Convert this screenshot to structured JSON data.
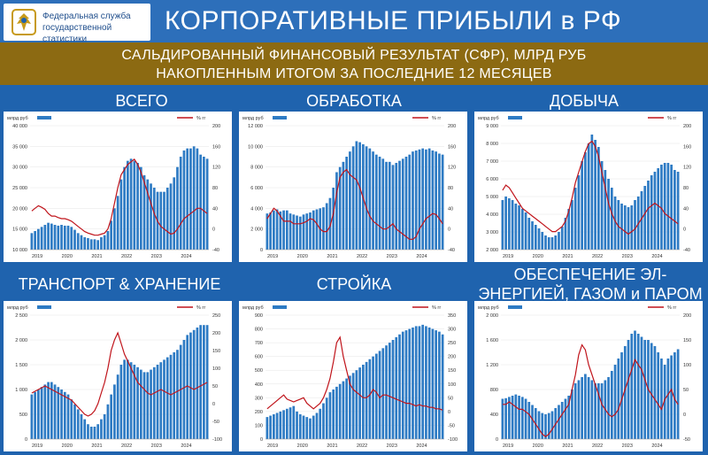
{
  "header": {
    "org_line1": "Федеральная служба",
    "org_line2": "государственной статистики",
    "title": "КОРПОРАТИВНЫЕ ПРИБЫЛИ в РФ"
  },
  "subtitle": {
    "line1": "САЛЬДИРОВАННЫЙ ФИНАНСОВЫЙ РЕЗУЛЬТАТ (СФР), МЛРД РУБ",
    "line2": "НАКОПЛЕННЫМ ИТОГОМ ЗА ПОСЛЕДНИЕ 12 МЕСЯЦЕВ"
  },
  "colors": {
    "bar": "#2e7bc4",
    "line": "#c0141b",
    "background": "#1f63ae",
    "band": "#8c6a12"
  },
  "legend": {
    "left": "млрд руб",
    "right": "% гг"
  },
  "panels": [
    {
      "title": "ВСЕГО"
    },
    {
      "title": "ОБРАБОТКА"
    },
    {
      "title": "ДОБЫЧА"
    },
    {
      "title": "ТРАНСПОРТ & ХРАНЕНИЕ"
    },
    {
      "title": "СТРОЙКА"
    },
    {
      "title": "ОБЕСПЕЧЕНИЕ ЭЛ-ЭНЕРГИЕЙ, ГАЗОМ и ПАРОМ"
    }
  ],
  "chart_data": [
    {
      "type": "bar",
      "title": "ВСЕГО",
      "x_labels": [
        "2019",
        "2020",
        "2021",
        "2022",
        "2023",
        "2024"
      ],
      "ylim": [
        10000,
        40000
      ],
      "y_ticks": [
        10000,
        15000,
        20000,
        25000,
        30000,
        35000,
        40000
      ],
      "y_tick_labels": [
        "10 000",
        "15 000",
        "20 000",
        "25 000",
        "30 000",
        "35 000",
        "40 000"
      ],
      "y2lim": [
        -40,
        200
      ],
      "y2_ticks": [
        -40,
        0,
        40,
        80,
        120,
        160,
        200
      ],
      "series": [
        {
          "name": "млрд руб",
          "values": [
            14000,
            14500,
            15000,
            15500,
            16000,
            16500,
            16300,
            16000,
            15800,
            16000,
            15800,
            15800,
            15500,
            14800,
            14000,
            13500,
            13000,
            12800,
            12500,
            12500,
            12300,
            13000,
            13500,
            14500,
            17000,
            20000,
            23000,
            27000,
            30000,
            31500,
            32000,
            31500,
            31000,
            30000,
            28000,
            27000,
            26000,
            25000,
            24000,
            24000,
            24000,
            25000,
            26000,
            27500,
            30000,
            32500,
            34000,
            34500,
            34500,
            35000,
            34500,
            33000,
            32500,
            32000
          ]
        },
        {
          "name": "% гг",
          "values": [
            35,
            40,
            45,
            42,
            38,
            30,
            25,
            25,
            22,
            20,
            20,
            18,
            15,
            10,
            5,
            0,
            -5,
            -8,
            -10,
            -12,
            -12,
            -10,
            -8,
            0,
            20,
            50,
            80,
            105,
            115,
            125,
            130,
            135,
            125,
            110,
            90,
            70,
            50,
            30,
            15,
            5,
            0,
            -5,
            -10,
            -8,
            0,
            10,
            20,
            25,
            30,
            35,
            40,
            40,
            35,
            30
          ]
        }
      ]
    },
    {
      "type": "bar",
      "title": "ОБРАБОТКА",
      "x_labels": [
        "2019",
        "2020",
        "2021",
        "2022",
        "2023",
        "2024"
      ],
      "ylim": [
        0,
        12000
      ],
      "y_ticks": [
        0,
        2000,
        4000,
        6000,
        8000,
        10000,
        12000
      ],
      "y_tick_labels": [
        "0",
        "2 000",
        "4 000",
        "6 000",
        "8 000",
        "10 000",
        "12 000"
      ],
      "y2lim": [
        -40,
        200
      ],
      "y2_ticks": [
        -40,
        0,
        40,
        80,
        120,
        160,
        200
      ],
      "series": [
        {
          "name": "млрд руб",
          "values": [
            3500,
            3600,
            3800,
            3900,
            3700,
            3800,
            3800,
            3500,
            3400,
            3300,
            3200,
            3400,
            3500,
            3600,
            3800,
            3900,
            4000,
            4100,
            4500,
            5000,
            6000,
            7500,
            8000,
            8500,
            9000,
            9500,
            10000,
            10500,
            10400,
            10200,
            10000,
            9800,
            9500,
            9200,
            9000,
            8800,
            8500,
            8500,
            8200,
            8400,
            8600,
            8800,
            9000,
            9200,
            9500,
            9600,
            9700,
            9800,
            9700,
            9800,
            9600,
            9500,
            9300,
            9200
          ]
        },
        {
          "name": "% гг",
          "values": [
            20,
            30,
            40,
            35,
            25,
            15,
            15,
            15,
            10,
            10,
            10,
            12,
            15,
            20,
            18,
            10,
            0,
            -5,
            -5,
            5,
            30,
            70,
            100,
            110,
            115,
            105,
            100,
            95,
            80,
            60,
            40,
            25,
            15,
            10,
            5,
            0,
            0,
            5,
            10,
            0,
            -5,
            -10,
            -15,
            -20,
            -20,
            -15,
            0,
            10,
            20,
            25,
            30,
            28,
            20,
            10
          ]
        }
      ]
    },
    {
      "type": "bar",
      "title": "ДОБЫЧА",
      "x_labels": [
        "2019",
        "2020",
        "2021",
        "2022",
        "2023",
        "2024"
      ],
      "ylim": [
        2000,
        9000
      ],
      "y_ticks": [
        2000,
        3000,
        4000,
        5000,
        6000,
        7000,
        8000,
        9000
      ],
      "y_tick_labels": [
        "2 000",
        "3 000",
        "4 000",
        "5 000",
        "6 000",
        "7 000",
        "8 000",
        "9 000"
      ],
      "y2lim": [
        -40,
        200
      ],
      "y2_ticks": [
        -40,
        0,
        40,
        80,
        120,
        160,
        200
      ],
      "series": [
        {
          "name": "млрд руб",
          "values": [
            4800,
            5000,
            4900,
            4800,
            4600,
            4500,
            4300,
            4100,
            3800,
            3600,
            3400,
            3200,
            3000,
            2800,
            2700,
            2700,
            2800,
            3000,
            3300,
            3800,
            4300,
            4800,
            5500,
            6200,
            7000,
            7500,
            8000,
            8500,
            8200,
            7800,
            7000,
            6500,
            6000,
            5500,
            5000,
            4800,
            4600,
            4500,
            4400,
            4500,
            4800,
            5000,
            5300,
            5600,
            5900,
            6200,
            6400,
            6600,
            6800,
            6900,
            6900,
            6800,
            6500,
            6400
          ]
        },
        {
          "name": "% гг",
          "values": [
            75,
            85,
            80,
            70,
            60,
            50,
            40,
            35,
            30,
            25,
            20,
            15,
            10,
            5,
            0,
            -5,
            -5,
            0,
            5,
            15,
            35,
            60,
            90,
            110,
            130,
            150,
            165,
            170,
            160,
            140,
            110,
            80,
            50,
            30,
            15,
            5,
            0,
            -5,
            -10,
            -5,
            0,
            10,
            20,
            30,
            40,
            45,
            50,
            45,
            40,
            30,
            25,
            20,
            15,
            10
          ]
        }
      ]
    },
    {
      "type": "bar",
      "title": "ТРАНСПОРТ & ХРАНЕНИЕ",
      "x_labels": [
        "2019",
        "2020",
        "2021",
        "2022",
        "2023",
        "2024"
      ],
      "ylim": [
        0,
        2500
      ],
      "y_ticks": [
        0,
        500,
        1000,
        1500,
        2000,
        2500
      ],
      "y_tick_labels": [
        "0",
        "500",
        "1 000",
        "1 500",
        "2 000",
        "2 500"
      ],
      "y2lim": [
        -100,
        250
      ],
      "y2_ticks": [
        -100,
        -50,
        0,
        50,
        100,
        150,
        200,
        250
      ],
      "series": [
        {
          "name": "млрд руб",
          "values": [
            900,
            950,
            1000,
            1050,
            1100,
            1150,
            1150,
            1100,
            1050,
            1000,
            950,
            900,
            800,
            700,
            600,
            500,
            400,
            300,
            250,
            250,
            300,
            400,
            500,
            700,
            900,
            1100,
            1300,
            1500,
            1600,
            1600,
            1550,
            1500,
            1450,
            1400,
            1350,
            1350,
            1400,
            1450,
            1500,
            1550,
            1600,
            1650,
            1700,
            1750,
            1800,
            1900,
            2000,
            2100,
            2150,
            2200,
            2250,
            2300,
            2300,
            2300
          ]
        },
        {
          "name": "% гг",
          "values": [
            30,
            35,
            40,
            45,
            50,
            45,
            40,
            35,
            30,
            25,
            20,
            15,
            10,
            0,
            -10,
            -20,
            -30,
            -35,
            -30,
            -20,
            0,
            30,
            60,
            100,
            150,
            180,
            200,
            170,
            140,
            120,
            100,
            80,
            60,
            50,
            40,
            30,
            25,
            30,
            35,
            40,
            35,
            30,
            25,
            30,
            35,
            40,
            45,
            50,
            45,
            40,
            45,
            50,
            55,
            60
          ]
        }
      ]
    },
    {
      "type": "bar",
      "title": "СТРОЙКА",
      "x_labels": [
        "2019",
        "2020",
        "2021",
        "2022",
        "2023",
        "2024"
      ],
      "ylim": [
        0,
        900
      ],
      "y_ticks": [
        0,
        100,
        200,
        300,
        400,
        500,
        600,
        700,
        800,
        900
      ],
      "y_tick_labels": [
        "0",
        "100",
        "200",
        "300",
        "400",
        "500",
        "600",
        "700",
        "800",
        "900"
      ],
      "y2lim": [
        -100,
        350
      ],
      "y2_ticks": [
        -100,
        -50,
        0,
        50,
        100,
        150,
        200,
        250,
        300,
        350
      ],
      "series": [
        {
          "name": "млрд руб",
          "values": [
            160,
            170,
            180,
            190,
            200,
            210,
            220,
            230,
            240,
            200,
            180,
            170,
            160,
            150,
            170,
            190,
            220,
            260,
            300,
            340,
            360,
            380,
            400,
            420,
            440,
            460,
            480,
            500,
            520,
            540,
            560,
            580,
            600,
            620,
            640,
            660,
            680,
            700,
            720,
            740,
            760,
            780,
            790,
            800,
            810,
            820,
            820,
            830,
            820,
            810,
            800,
            790,
            780,
            760
          ]
        },
        {
          "name": "% гг",
          "values": [
            10,
            20,
            30,
            40,
            50,
            60,
            45,
            40,
            35,
            40,
            45,
            50,
            30,
            20,
            10,
            20,
            30,
            50,
            80,
            120,
            180,
            250,
            270,
            200,
            150,
            100,
            80,
            70,
            60,
            50,
            50,
            60,
            80,
            70,
            50,
            60,
            60,
            55,
            50,
            45,
            40,
            35,
            30,
            30,
            25,
            20,
            25,
            20,
            20,
            15,
            15,
            10,
            10,
            5
          ]
        }
      ]
    },
    {
      "type": "bar",
      "title": "ОБЕСПЕЧЕНИЕ ЭЛ-ЭНЕРГИЕЙ, ГАЗОМ и ПАРОМ",
      "x_labels": [
        "2019",
        "2020",
        "2021",
        "2022",
        "2023",
        "2024"
      ],
      "ylim": [
        0,
        2000
      ],
      "y_ticks": [
        0,
        400,
        800,
        1200,
        1600,
        2000
      ],
      "y_tick_labels": [
        "0",
        "400",
        "800",
        "1 200",
        "1 600",
        "2 000"
      ],
      "y2lim": [
        -50,
        200
      ],
      "y2_ticks": [
        -50,
        0,
        50,
        100,
        150,
        200
      ],
      "series": [
        {
          "name": "млрд руб",
          "values": [
            650,
            660,
            680,
            700,
            720,
            700,
            680,
            650,
            600,
            550,
            500,
            450,
            420,
            400,
            420,
            450,
            500,
            550,
            600,
            650,
            700,
            800,
            900,
            950,
            1000,
            1050,
            1000,
            950,
            900,
            900,
            900,
            950,
            1000,
            1100,
            1200,
            1300,
            1400,
            1500,
            1600,
            1700,
            1750,
            1700,
            1650,
            1600,
            1600,
            1550,
            1500,
            1400,
            1300,
            1200,
            1300,
            1350,
            1400,
            1450
          ]
        },
        {
          "name": "% гг",
          "values": [
            20,
            20,
            25,
            20,
            15,
            10,
            10,
            5,
            0,
            -10,
            -20,
            -30,
            -40,
            -45,
            -40,
            -30,
            -20,
            -10,
            0,
            10,
            20,
            50,
            80,
            120,
            140,
            130,
            100,
            80,
            60,
            40,
            20,
            10,
            0,
            -5,
            0,
            10,
            30,
            50,
            70,
            90,
            110,
            100,
            90,
            70,
            50,
            40,
            30,
            20,
            10,
            30,
            40,
            50,
            30,
            20
          ]
        }
      ]
    }
  ]
}
